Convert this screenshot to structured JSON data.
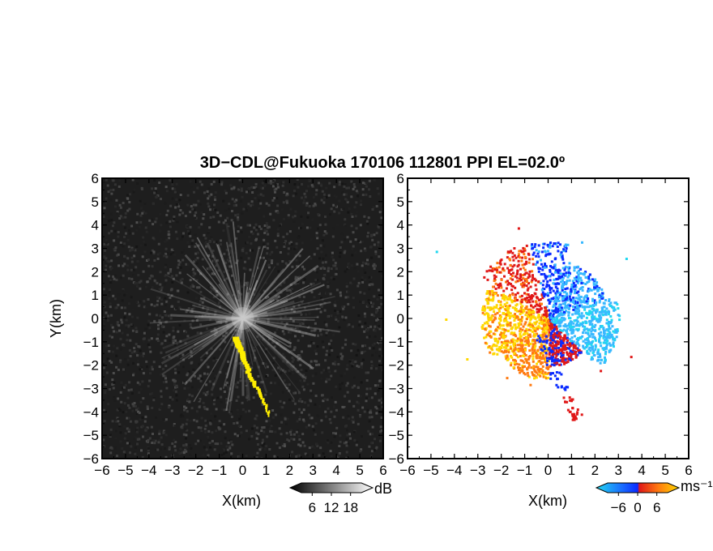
{
  "title": "3D−CDL@Fukuoka 170106 112801 PPI EL=02.0º",
  "chart_data": [
    {
      "type": "heatmap",
      "panel": "left",
      "quantity": "echo intensity",
      "xlabel": "X(km)",
      "ylabel": "Y(km)",
      "xlim": [
        -6,
        6
      ],
      "ylim": [
        -6,
        6
      ],
      "xticks": [
        -6,
        -5,
        -4,
        -3,
        -2,
        -1,
        0,
        1,
        2,
        3,
        4,
        5,
        6
      ],
      "yticks": [
        -6,
        -5,
        -4,
        -3,
        -2,
        -1,
        0,
        1,
        2,
        3,
        4,
        5,
        6
      ],
      "tick_labels": [
        "−6",
        "−5",
        "−4",
        "−3",
        "−2",
        "−1",
        "0",
        "1",
        "2",
        "3",
        "4",
        "5",
        "6"
      ],
      "colorbar": {
        "unit": "dB",
        "ticks": [
          6,
          12,
          18
        ],
        "tick_labels": [
          "6",
          "12",
          "18"
        ],
        "colormap": "grayscale"
      },
      "background": "dark noise (low dB)",
      "features": [
        {
          "kind": "radial streaks",
          "center": [
            0,
            0
          ],
          "max_range_km": 4.2,
          "color": "#c8c8c8"
        },
        {
          "kind": "high-intensity plume",
          "color": "#ffee00",
          "path": [
            [
              -0.3,
              -0.85
            ],
            [
              -0.1,
              -1.3
            ],
            [
              0.05,
              -1.8
            ],
            [
              0.3,
              -2.4
            ],
            [
              0.55,
              -2.9
            ],
            [
              0.85,
              -3.4
            ],
            [
              1.05,
              -3.9
            ],
            [
              1.15,
              -4.2
            ]
          ]
        }
      ]
    },
    {
      "type": "heatmap",
      "panel": "right",
      "quantity": "radial velocity",
      "xlabel": "X(km)",
      "ylabel": "",
      "xlim": [
        -6,
        6
      ],
      "ylim": [
        -6,
        6
      ],
      "xticks": [
        -6,
        -5,
        -4,
        -3,
        -2,
        -1,
        0,
        1,
        2,
        3,
        4,
        5,
        6
      ],
      "yticks": [
        -6,
        -5,
        -4,
        -3,
        -2,
        -1,
        0,
        1,
        2,
        3,
        4,
        5,
        6
      ],
      "tick_labels": [
        "−6",
        "−5",
        "−4",
        "−3",
        "−2",
        "−1",
        "0",
        "1",
        "2",
        "3",
        "4",
        "5",
        "6"
      ],
      "colorbar": {
        "unit": "ms⁻¹",
        "ticks": [
          -6,
          0,
          6
        ],
        "tick_labels": [
          "−6",
          "0",
          "6"
        ],
        "colormap": "cyan-blue-red-orange-yellow"
      },
      "sectors": [
        {
          "region": "east / north-east",
          "velocity_ms": -4,
          "color": "#2aa7e8"
        },
        {
          "region": "north",
          "velocity_ms": -6,
          "color": "#0a2bff"
        },
        {
          "region": "north-west",
          "velocity_ms": 3,
          "color": "#ff5a0a"
        },
        {
          "region": "west",
          "velocity_ms": 6,
          "color": "#ffd800"
        },
        {
          "region": "south",
          "velocity_ms": 4,
          "color": "#ff7a10"
        },
        {
          "region": "south-east",
          "velocity_ms": 1,
          "color": "#d01010"
        }
      ]
    }
  ],
  "colors": {
    "plume": "#ffee00",
    "vel_cyan": "#22d8f0",
    "vel_light_blue": "#38b8ff",
    "vel_blue": "#0a2bff",
    "vel_red": "#e01818",
    "vel_orange": "#ff7a10",
    "vel_yellow": "#ffd800"
  }
}
